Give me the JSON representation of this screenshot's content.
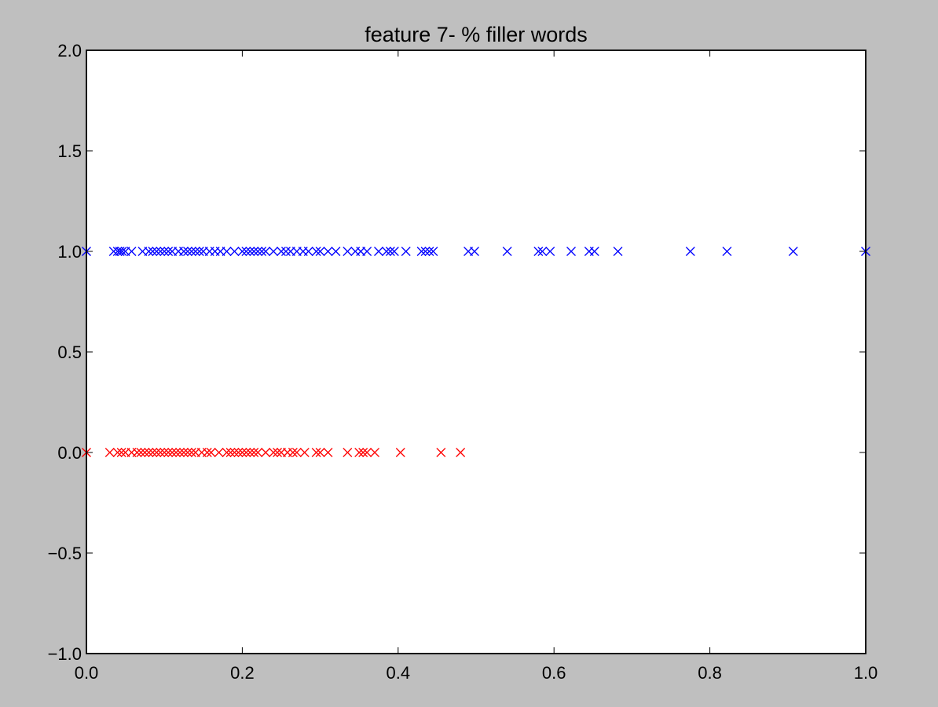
{
  "chart_data": {
    "type": "scatter",
    "title": "feature 7- % filler words",
    "xlabel": "",
    "ylabel": "",
    "xlim": [
      0.0,
      1.0
    ],
    "ylim": [
      -1.0,
      2.0
    ],
    "x_ticks": [
      "0.0",
      "0.2",
      "0.4",
      "0.6",
      "0.8",
      "1.0"
    ],
    "y_ticks": [
      "−1.0",
      "−0.5",
      "0.0",
      "0.5",
      "1.0",
      "1.5",
      "2.0"
    ],
    "grid": false,
    "marker": "x",
    "series": [
      {
        "color": "#0000ff",
        "points": [
          [
            0.0,
            1.0
          ],
          [
            0.035,
            1.0
          ],
          [
            0.04,
            1.0
          ],
          [
            0.043,
            1.0
          ],
          [
            0.046,
            1.0
          ],
          [
            0.05,
            1.0
          ],
          [
            0.058,
            1.0
          ],
          [
            0.072,
            1.0
          ],
          [
            0.08,
            1.0
          ],
          [
            0.085,
            1.0
          ],
          [
            0.09,
            1.0
          ],
          [
            0.095,
            1.0
          ],
          [
            0.1,
            1.0
          ],
          [
            0.105,
            1.0
          ],
          [
            0.11,
            1.0
          ],
          [
            0.118,
            1.0
          ],
          [
            0.125,
            1.0
          ],
          [
            0.13,
            1.0
          ],
          [
            0.135,
            1.0
          ],
          [
            0.14,
            1.0
          ],
          [
            0.145,
            1.0
          ],
          [
            0.15,
            1.0
          ],
          [
            0.158,
            1.0
          ],
          [
            0.165,
            1.0
          ],
          [
            0.172,
            1.0
          ],
          [
            0.18,
            1.0
          ],
          [
            0.19,
            1.0
          ],
          [
            0.2,
            1.0
          ],
          [
            0.205,
            1.0
          ],
          [
            0.21,
            1.0
          ],
          [
            0.215,
            1.0
          ],
          [
            0.22,
            1.0
          ],
          [
            0.225,
            1.0
          ],
          [
            0.23,
            1.0
          ],
          [
            0.24,
            1.0
          ],
          [
            0.25,
            1.0
          ],
          [
            0.256,
            1.0
          ],
          [
            0.262,
            1.0
          ],
          [
            0.27,
            1.0
          ],
          [
            0.278,
            1.0
          ],
          [
            0.285,
            1.0
          ],
          [
            0.295,
            1.0
          ],
          [
            0.3,
            1.0
          ],
          [
            0.31,
            1.0
          ],
          [
            0.32,
            1.0
          ],
          [
            0.335,
            1.0
          ],
          [
            0.345,
            1.0
          ],
          [
            0.352,
            1.0
          ],
          [
            0.36,
            1.0
          ],
          [
            0.375,
            1.0
          ],
          [
            0.385,
            1.0
          ],
          [
            0.39,
            1.0
          ],
          [
            0.395,
            1.0
          ],
          [
            0.41,
            1.0
          ],
          [
            0.43,
            1.0
          ],
          [
            0.435,
            1.0
          ],
          [
            0.44,
            1.0
          ],
          [
            0.445,
            1.0
          ],
          [
            0.49,
            1.0
          ],
          [
            0.498,
            1.0
          ],
          [
            0.54,
            1.0
          ],
          [
            0.58,
            1.0
          ],
          [
            0.585,
            1.0
          ],
          [
            0.595,
            1.0
          ],
          [
            0.622,
            1.0
          ],
          [
            0.645,
            1.0
          ],
          [
            0.652,
            1.0
          ],
          [
            0.682,
            1.0
          ],
          [
            0.775,
            1.0
          ],
          [
            0.822,
            1.0
          ],
          [
            0.907,
            1.0
          ],
          [
            1.0,
            1.0
          ]
        ]
      },
      {
        "color": "#ff0000",
        "points": [
          [
            0.0,
            0.0
          ],
          [
            0.03,
            0.0
          ],
          [
            0.04,
            0.0
          ],
          [
            0.045,
            0.0
          ],
          [
            0.05,
            0.0
          ],
          [
            0.058,
            0.0
          ],
          [
            0.065,
            0.0
          ],
          [
            0.07,
            0.0
          ],
          [
            0.075,
            0.0
          ],
          [
            0.08,
            0.0
          ],
          [
            0.085,
            0.0
          ],
          [
            0.09,
            0.0
          ],
          [
            0.095,
            0.0
          ],
          [
            0.1,
            0.0
          ],
          [
            0.105,
            0.0
          ],
          [
            0.11,
            0.0
          ],
          [
            0.115,
            0.0
          ],
          [
            0.12,
            0.0
          ],
          [
            0.125,
            0.0
          ],
          [
            0.13,
            0.0
          ],
          [
            0.135,
            0.0
          ],
          [
            0.14,
            0.0
          ],
          [
            0.148,
            0.0
          ],
          [
            0.155,
            0.0
          ],
          [
            0.16,
            0.0
          ],
          [
            0.17,
            0.0
          ],
          [
            0.18,
            0.0
          ],
          [
            0.185,
            0.0
          ],
          [
            0.19,
            0.0
          ],
          [
            0.195,
            0.0
          ],
          [
            0.2,
            0.0
          ],
          [
            0.205,
            0.0
          ],
          [
            0.21,
            0.0
          ],
          [
            0.215,
            0.0
          ],
          [
            0.22,
            0.0
          ],
          [
            0.23,
            0.0
          ],
          [
            0.24,
            0.0
          ],
          [
            0.245,
            0.0
          ],
          [
            0.25,
            0.0
          ],
          [
            0.258,
            0.0
          ],
          [
            0.265,
            0.0
          ],
          [
            0.27,
            0.0
          ],
          [
            0.28,
            0.0
          ],
          [
            0.295,
            0.0
          ],
          [
            0.3,
            0.0
          ],
          [
            0.31,
            0.0
          ],
          [
            0.335,
            0.0
          ],
          [
            0.35,
            0.0
          ],
          [
            0.355,
            0.0
          ],
          [
            0.36,
            0.0
          ],
          [
            0.37,
            0.0
          ],
          [
            0.403,
            0.0
          ],
          [
            0.455,
            0.0
          ],
          [
            0.48,
            0.0
          ]
        ]
      }
    ]
  }
}
